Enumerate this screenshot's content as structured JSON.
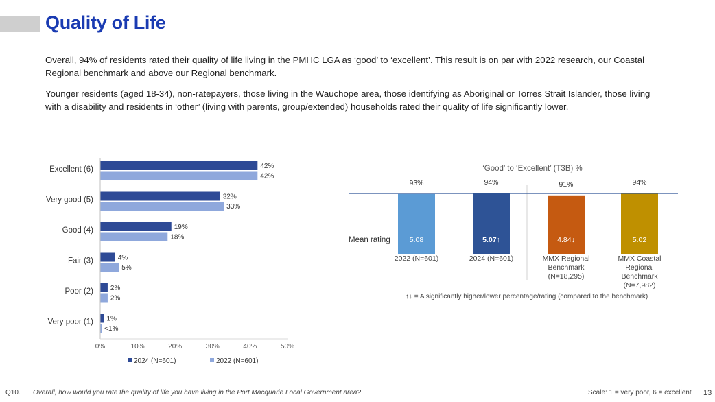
{
  "page": {
    "title": "Quality of Life",
    "paragraph1": "Overall, 94% of residents rated their quality of life living in the PMHC LGA as ‘good’ to ‘excellent’. This result is on par with 2022 research, our Coastal Regional benchmark and above our Regional benchmark.",
    "paragraph2": "Younger residents (aged 18-34), non-ratepayers, those living in the Wauchope area, those identifying as Aboriginal or Torres Strait Islander, those living with a disability and residents in ‘other’ (living with parents, group/extended) households rated their quality of life significantly lower.",
    "question_number": "Q10.",
    "question_text": "Overall, how would you rate the quality of life you have living in the Port Macquarie Local Government area?",
    "scale_note": "Scale: 1 = very poor, 6 = excellent",
    "page_number": "13"
  },
  "colors": {
    "title": "#1a3bb2",
    "series_2024": "#2e4a96",
    "series_2022": "#8fa8dc",
    "bar_2022": "#5b9bd5",
    "bar_2024": "#2e5396",
    "bar_mmx_regional": "#c55a11",
    "bar_mmx_coastal": "#bf9000",
    "t3b_line": "#2f5597"
  },
  "chart_data": [
    {
      "type": "bar",
      "orientation": "horizontal",
      "categories": [
        "Excellent (6)",
        "Very good (5)",
        "Good (4)",
        "Fair (3)",
        "Poor (2)",
        "Very poor (1)"
      ],
      "series": [
        {
          "name": "2024 (N=601)",
          "values": [
            42,
            32,
            19,
            4,
            2,
            1
          ],
          "labels": [
            "42%",
            "32%",
            "19%",
            "4%",
            "2%",
            "1%"
          ]
        },
        {
          "name": "2022 (N=601)",
          "values": [
            42,
            33,
            18,
            5,
            2,
            0.4
          ],
          "labels": [
            "42%",
            "33%",
            "18%",
            "5%",
            "2%",
            "<1%"
          ]
        }
      ],
      "xlim": [
        0,
        50
      ],
      "xticks": [
        0,
        10,
        20,
        30,
        40,
        50
      ],
      "xtick_labels": [
        "0%",
        "10%",
        "20%",
        "30%",
        "40%",
        "50%"
      ],
      "legend": "bottom"
    },
    {
      "type": "bar",
      "title": "‘Good’ to ‘Excellent’ (T3B) %",
      "categories": [
        "2022 (N=601)",
        "2024 (N=601)",
        "MMX Regional Benchmark (N=18,295)",
        "MMX Coastal Regional Benchmark (N=7,982)"
      ],
      "category_lines": [
        [
          "2022 (N=601)"
        ],
        [
          "2024 (N=601)"
        ],
        [
          "MMX Regional",
          "Benchmark",
          "(N=18,295)"
        ],
        [
          "MMX Coastal",
          "Regional",
          "Benchmark",
          "(N=7,982)"
        ]
      ],
      "values": [
        93,
        94,
        91,
        94
      ],
      "value_labels": [
        "93%",
        "94%",
        "91%",
        "94%"
      ],
      "mean_label": "Mean rating",
      "mean_ratings": [
        "5.08",
        "5.07↑",
        "4.84↓",
        "5.02"
      ],
      "reference_line": 94,
      "ylim": [
        0,
        94
      ],
      "note": "↑↓ = A significantly higher/lower percentage/rating (compared to the benchmark)"
    }
  ]
}
